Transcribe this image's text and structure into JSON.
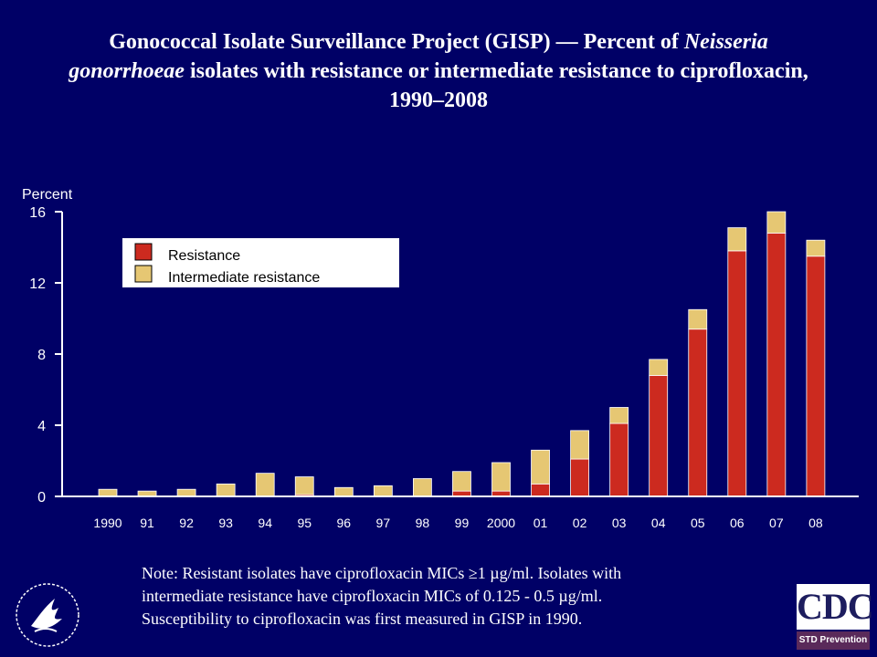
{
  "title": {
    "part1": "Gonococcal Isolate Surveillance Project (GISP) — Percent of ",
    "italic1": "Neisseria",
    "italic2": "gonorrhoeae",
    "part2": " isolates with resistance or intermediate resistance to ciprofloxacin,",
    "part3": "1990–2008"
  },
  "chart_data": {
    "type": "bar",
    "stacked": true,
    "ylabel": "Percent",
    "ylim": [
      0,
      16
    ],
    "yticks": [
      0,
      4,
      8,
      12,
      16
    ],
    "categories": [
      "1990",
      "91",
      "92",
      "93",
      "94",
      "95",
      "96",
      "97",
      "98",
      "99",
      "2000",
      "01",
      "02",
      "03",
      "04",
      "05",
      "06",
      "07",
      "08"
    ],
    "series": [
      {
        "name": "Resistance",
        "color": "#cc2a1f",
        "values": [
          0,
          0,
          0,
          0,
          0,
          0.1,
          0,
          0,
          0,
          0.3,
          0.3,
          0.7,
          2.1,
          4.1,
          6.8,
          9.4,
          13.8,
          14.8,
          13.5
        ]
      },
      {
        "name": "Intermediate resistance",
        "color": "#e6c773",
        "values": [
          0.4,
          0.3,
          0.4,
          0.7,
          1.3,
          1.0,
          0.5,
          0.6,
          1.0,
          1.1,
          1.6,
          1.9,
          1.6,
          0.9,
          0.9,
          1.1,
          1.3,
          1.2,
          0.9
        ]
      }
    ],
    "legend": "top-left",
    "grid": false
  },
  "note": {
    "line1": "Note: Resistant isolates have ciprofloxacin MICs ≥1 µg/ml. Isolates with",
    "line2": "intermediate resistance have ciprofloxacin MICs of 0.125 - 0.5 µg/ml.",
    "line3": "Susceptibility to ciprofloxacin was first measured in GISP in 1990."
  },
  "logos": {
    "cdc": "CDC",
    "cdc_sub": "STD Prevention",
    "hhs_icon": "hhs-eagle-seal-icon"
  }
}
